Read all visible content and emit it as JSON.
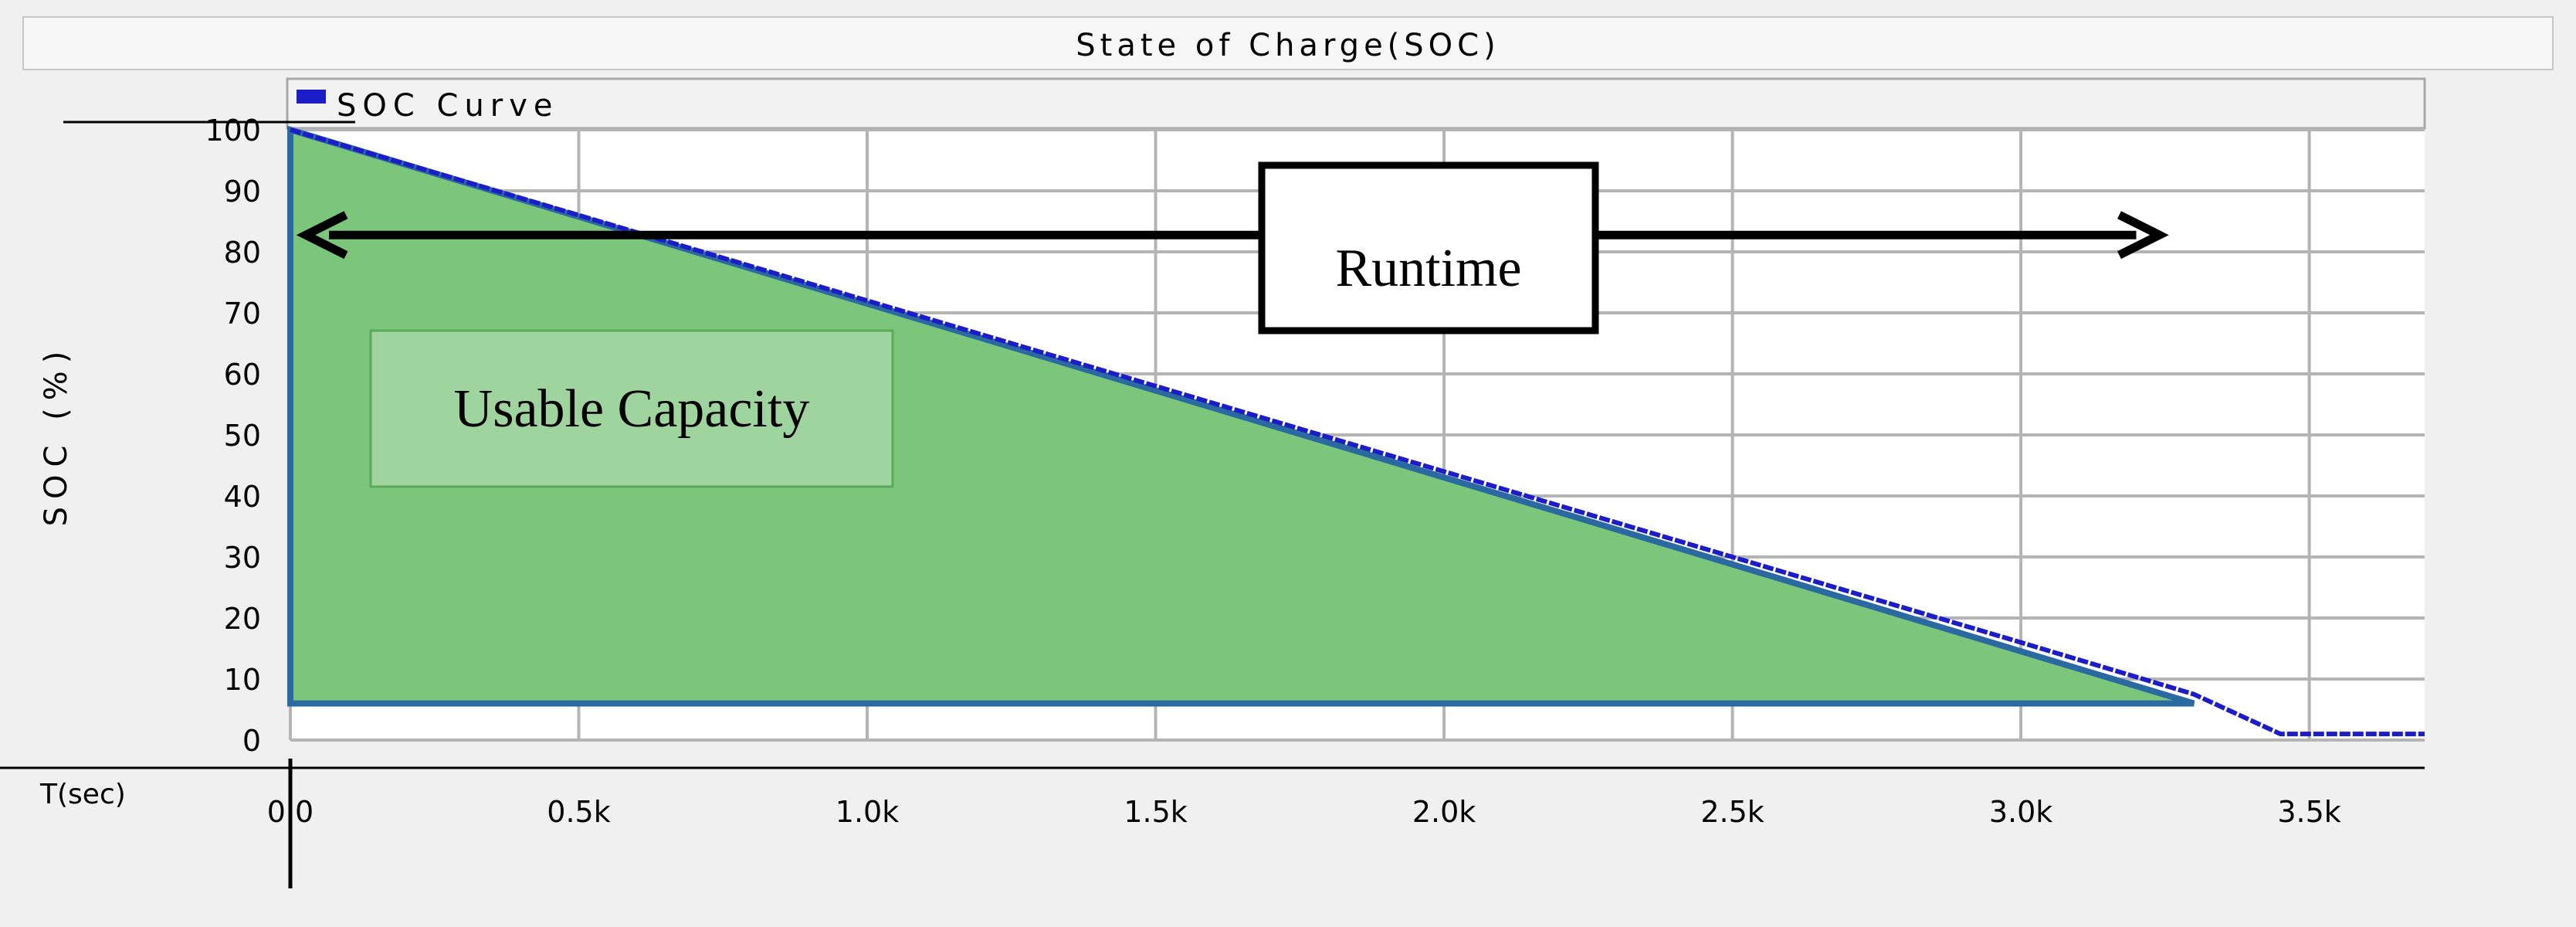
{
  "colors": {
    "background": "#f0f0f0",
    "plot_background": "#ffffff",
    "grid": "#b4b4b4",
    "series_line": "#1c1cc8",
    "area_fill": "#7cc67c",
    "area_border": "#2a6aa0",
    "usable_box_fill": "#9fd49f",
    "usable_box_border": "#5aaa5a"
  },
  "chart_data": {
    "type": "line",
    "title": "State of Charge(SOC)",
    "xlabel": "T(sec)",
    "ylabel": "SOC (%)",
    "xlim": [
      0,
      3700
    ],
    "ylim": [
      0,
      100
    ],
    "x_ticks": [
      0,
      500,
      1000,
      1500,
      2000,
      2500,
      3000,
      3500
    ],
    "x_tick_labels": [
      "0.0",
      "0.5k",
      "1.0k",
      "1.5k",
      "2.0k",
      "2.5k",
      "3.0k",
      "3.5k"
    ],
    "y_ticks": [
      0,
      10,
      20,
      30,
      40,
      50,
      60,
      70,
      80,
      90,
      100
    ],
    "y_tick_labels": [
      "0",
      "10",
      "20",
      "30",
      "40",
      "50",
      "60",
      "70",
      "80",
      "90",
      "100"
    ],
    "grid": true,
    "legend": {
      "placement": "top-left",
      "entries": [
        "SOC Curve"
      ]
    },
    "series": [
      {
        "name": "SOC Curve",
        "x": [
          0,
          500,
          1000,
          1500,
          2000,
          2500,
          3000,
          3300,
          3450,
          3700
        ],
        "y": [
          100,
          86,
          72,
          58,
          44,
          30,
          16,
          7.5,
          1,
          1
        ]
      }
    ],
    "shaded_region": {
      "label": "Usable Capacity",
      "polygon_x": [
        0,
        0,
        3300
      ],
      "polygon_y": [
        100,
        6,
        6
      ]
    },
    "annotations": [
      {
        "text": "Runtime",
        "arrow_y": 82,
        "arrow_x": [
          0,
          3200
        ]
      }
    ]
  }
}
